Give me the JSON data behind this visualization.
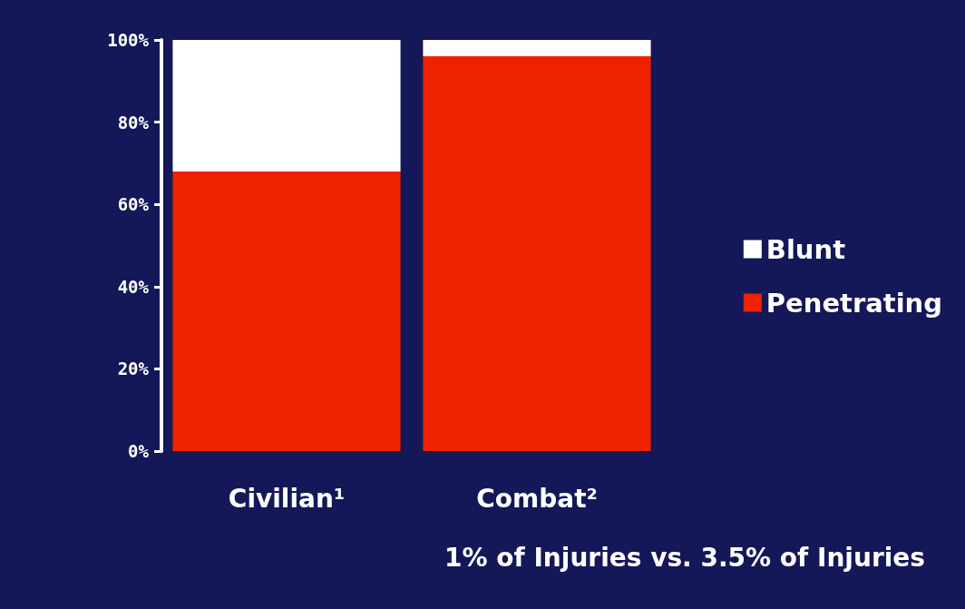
{
  "chart_data": {
    "type": "bar",
    "stacked": true,
    "categories": [
      "Civilian¹",
      "Combat²"
    ],
    "series": [
      {
        "name": "Penetrating",
        "color": "#ee2200",
        "values": [
          68,
          96
        ]
      },
      {
        "name": "Blunt",
        "color": "#ffffff",
        "values": [
          32,
          4
        ]
      }
    ],
    "ylim": [
      0,
      100
    ],
    "yticks": [
      {
        "value": 0,
        "label": "0%"
      },
      {
        "value": 20,
        "label": "20%"
      },
      {
        "value": 40,
        "label": "40%"
      },
      {
        "value": 60,
        "label": "60%"
      },
      {
        "value": 80,
        "label": "80%"
      },
      {
        "value": 100,
        "label": "100%"
      }
    ],
    "grid": false,
    "legend": "right",
    "annotations": [
      "1% of Injuries vs. 3.5% of Injuries"
    ]
  }
}
